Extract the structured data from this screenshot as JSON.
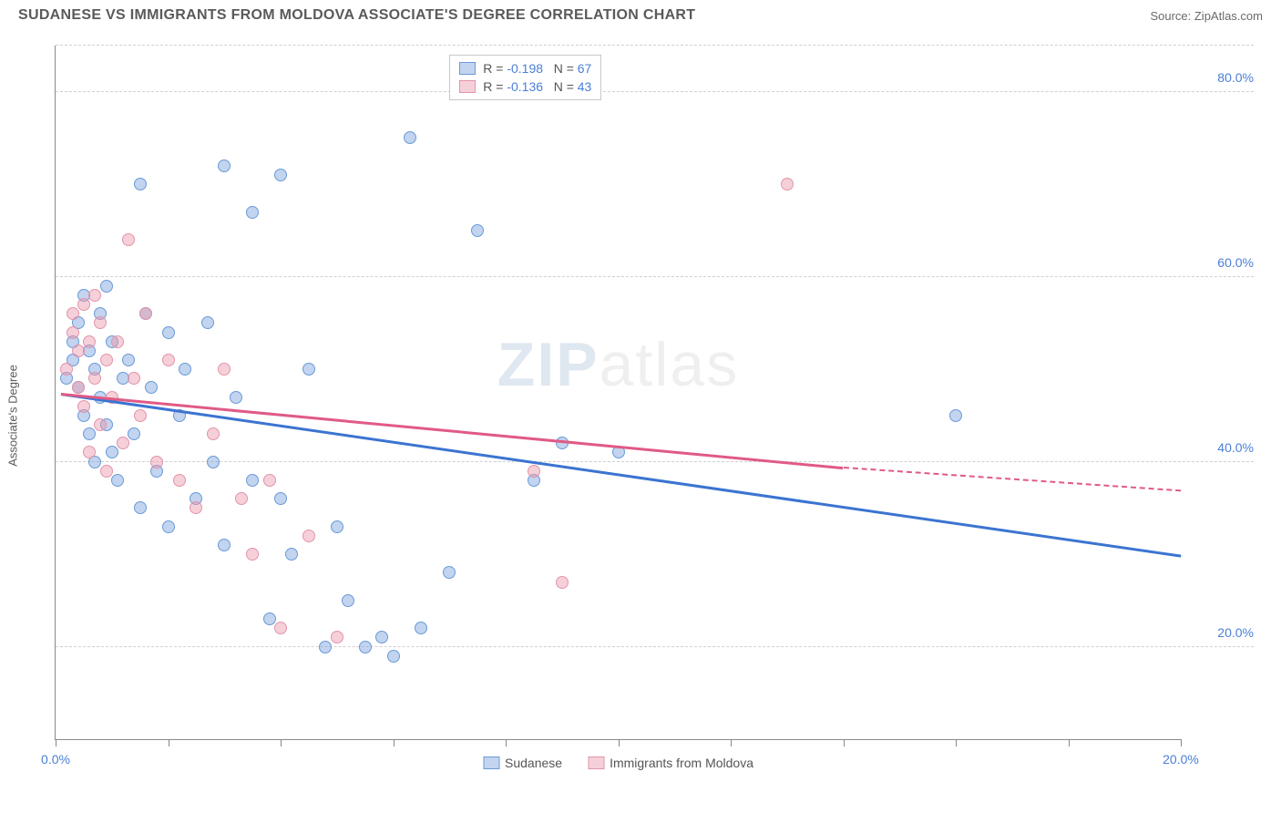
{
  "header": {
    "title": "SUDANESE VS IMMIGRANTS FROM MOLDOVA ASSOCIATE'S DEGREE CORRELATION CHART",
    "source_prefix": "Source: ",
    "source_name": "ZipAtlas.com"
  },
  "chart": {
    "type": "scatter",
    "ylabel": "Associate's Degree",
    "watermark": "ZIPatlas",
    "xlim": [
      0,
      20
    ],
    "ylim": [
      10,
      85
    ],
    "x_ticks": [
      0,
      2,
      4,
      6,
      8,
      10,
      12,
      14,
      16,
      18,
      20
    ],
    "x_tick_labels": {
      "0": "0.0%",
      "20": "20.0%"
    },
    "y_gridlines": [
      20,
      40,
      60,
      80
    ],
    "y_tick_labels": {
      "20": "20.0%",
      "40": "40.0%",
      "60": "60.0%",
      "80": "80.0%"
    },
    "background_color": "#ffffff",
    "grid_color": "#d0d0d0",
    "axis_color": "#888888",
    "tick_label_color": "#4a7fd8",
    "point_radius": 7,
    "series": [
      {
        "name": "Sudanese",
        "fill_color": "rgba(120,160,220,0.45)",
        "stroke_color": "#6a9ad8",
        "trend_color": "#3b74d1",
        "R": "-0.198",
        "N": "67",
        "trend": {
          "x1": 0.1,
          "y1": 47.5,
          "x2": 20,
          "y2": 30.0
        },
        "points": [
          [
            0.2,
            49
          ],
          [
            0.3,
            51
          ],
          [
            0.3,
            53
          ],
          [
            0.4,
            48
          ],
          [
            0.4,
            55
          ],
          [
            0.5,
            45
          ],
          [
            0.5,
            58
          ],
          [
            0.6,
            52
          ],
          [
            0.6,
            43
          ],
          [
            0.7,
            50
          ],
          [
            0.7,
            40
          ],
          [
            0.8,
            47
          ],
          [
            0.8,
            56
          ],
          [
            0.9,
            44
          ],
          [
            0.9,
            59
          ],
          [
            1.0,
            53
          ],
          [
            1.0,
            41
          ],
          [
            1.1,
            38
          ],
          [
            1.2,
            49
          ],
          [
            1.3,
            51
          ],
          [
            1.4,
            43
          ],
          [
            1.5,
            70
          ],
          [
            1.5,
            35
          ],
          [
            1.6,
            56
          ],
          [
            1.7,
            48
          ],
          [
            1.8,
            39
          ],
          [
            2.0,
            54
          ],
          [
            2.0,
            33
          ],
          [
            2.2,
            45
          ],
          [
            2.3,
            50
          ],
          [
            2.5,
            36
          ],
          [
            2.7,
            55
          ],
          [
            2.8,
            40
          ],
          [
            3.0,
            72
          ],
          [
            3.0,
            31
          ],
          [
            3.2,
            47
          ],
          [
            3.5,
            67
          ],
          [
            3.5,
            38
          ],
          [
            3.8,
            23
          ],
          [
            4.0,
            71
          ],
          [
            4.0,
            36
          ],
          [
            4.2,
            30
          ],
          [
            4.5,
            50
          ],
          [
            4.8,
            20
          ],
          [
            5.0,
            33
          ],
          [
            5.2,
            25
          ],
          [
            5.5,
            20
          ],
          [
            5.8,
            21
          ],
          [
            6.0,
            19
          ],
          [
            6.3,
            75
          ],
          [
            6.5,
            22
          ],
          [
            7.0,
            28
          ],
          [
            7.5,
            65
          ],
          [
            8.5,
            38
          ],
          [
            9.0,
            42
          ],
          [
            10.0,
            41
          ],
          [
            16.0,
            45
          ]
        ]
      },
      {
        "name": "Immigrants from Moldova",
        "fill_color": "rgba(235,150,170,0.45)",
        "stroke_color": "#e294aa",
        "trend_color": "#e05a85",
        "R": "-0.136",
        "N": "43",
        "trend": {
          "x1": 0.1,
          "y1": 47.5,
          "x2": 14,
          "y2": 39.5
        },
        "trend_dashed_to_x": 20,
        "trend_dashed_to_y": 37.0,
        "points": [
          [
            0.2,
            50
          ],
          [
            0.3,
            54
          ],
          [
            0.3,
            56
          ],
          [
            0.4,
            52
          ],
          [
            0.4,
            48
          ],
          [
            0.5,
            57
          ],
          [
            0.5,
            46
          ],
          [
            0.6,
            53
          ],
          [
            0.6,
            41
          ],
          [
            0.7,
            49
          ],
          [
            0.7,
            58
          ],
          [
            0.8,
            44
          ],
          [
            0.8,
            55
          ],
          [
            0.9,
            51
          ],
          [
            0.9,
            39
          ],
          [
            1.0,
            47
          ],
          [
            1.1,
            53
          ],
          [
            1.2,
            42
          ],
          [
            1.3,
            64
          ],
          [
            1.4,
            49
          ],
          [
            1.5,
            45
          ],
          [
            1.6,
            56
          ],
          [
            1.8,
            40
          ],
          [
            2.0,
            51
          ],
          [
            2.2,
            38
          ],
          [
            2.5,
            35
          ],
          [
            2.8,
            43
          ],
          [
            3.0,
            50
          ],
          [
            3.3,
            36
          ],
          [
            3.5,
            30
          ],
          [
            3.8,
            38
          ],
          [
            4.0,
            22
          ],
          [
            4.5,
            32
          ],
          [
            5.0,
            21
          ],
          [
            8.5,
            39
          ],
          [
            9.0,
            27
          ],
          [
            13.0,
            70
          ]
        ]
      }
    ],
    "legend_top": {
      "R_label": "R =",
      "N_label": "N ="
    },
    "legend_bottom": [
      {
        "label": "Sudanese",
        "series": 0
      },
      {
        "label": "Immigrants from Moldova",
        "series": 1
      }
    ]
  }
}
